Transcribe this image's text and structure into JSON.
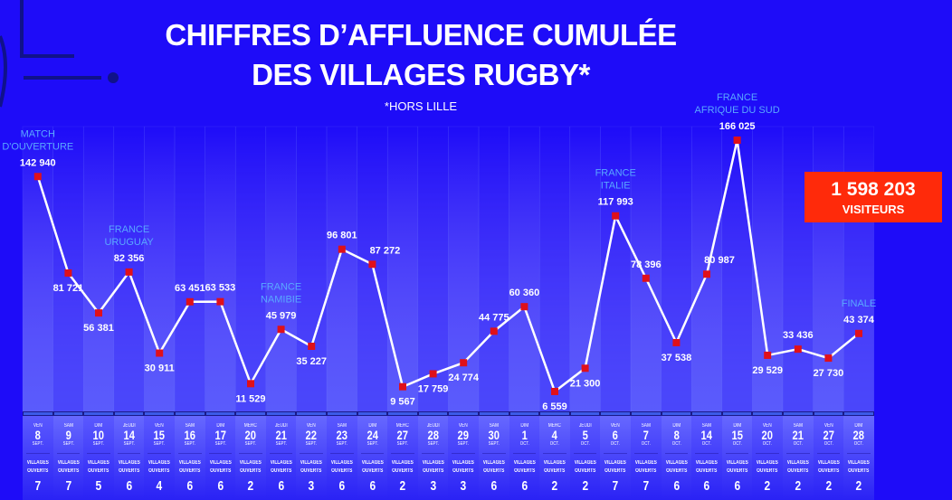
{
  "title_line1": "CHIFFRES D’AFFLUENCE CUMULÉE",
  "title_line2": "DES VILLAGES RUGBY*",
  "subtitle": "*HORS LILLE",
  "total": {
    "value": "1 598 203",
    "label": "VISITEURS"
  },
  "colors": {
    "background": "#1e0cf8",
    "line": "#ffffff",
    "marker": "#e0101a",
    "annotation": "#5aa8ff",
    "total_box": "#ff2a0a"
  },
  "village_label_1": "VILLAGES",
  "village_label_2": "OUVERTS",
  "chart_data": {
    "type": "line",
    "title": "CHIFFRES D’AFFLUENCE CUMULÉE DES VILLAGES RUGBY*",
    "ylim": [
      0,
      170000
    ],
    "points": [
      {
        "day": "VEN",
        "date": "8",
        "month": "SEPT.",
        "value": 142940,
        "label": "142 940",
        "villages": "7",
        "note": "MATCH D'OUVERTURE"
      },
      {
        "day": "SAM",
        "date": "9",
        "month": "SEPT.",
        "value": 81721,
        "label": "81 721",
        "villages": "7"
      },
      {
        "day": "DIM",
        "date": "10",
        "month": "SEPT.",
        "value": 56381,
        "label": "56 381",
        "villages": "5"
      },
      {
        "day": "JEUDI",
        "date": "14",
        "month": "SEPT.",
        "value": 82356,
        "label": "82 356",
        "villages": "6",
        "note": "FRANCE URUGUAY"
      },
      {
        "day": "VEN",
        "date": "15",
        "month": "SEPT.",
        "value": 30911,
        "label": "30 911",
        "villages": "4"
      },
      {
        "day": "SAM",
        "date": "16",
        "month": "SEPT.",
        "value": 63451,
        "label": "63 451",
        "villages": "6"
      },
      {
        "day": "DIM",
        "date": "17",
        "month": "SEPT.",
        "value": 63533,
        "label": "63 533",
        "villages": "6"
      },
      {
        "day": "MERC",
        "date": "20",
        "month": "SEPT.",
        "value": 11529,
        "label": "11 529",
        "villages": "2"
      },
      {
        "day": "JEUDI",
        "date": "21",
        "month": "SEPT.",
        "value": 45979,
        "label": "45 979",
        "villages": "6",
        "note": "FRANCE NAMIBIE"
      },
      {
        "day": "VEN",
        "date": "22",
        "month": "SEPT.",
        "value": 35227,
        "label": "35 227",
        "villages": "3"
      },
      {
        "day": "SAM",
        "date": "23",
        "month": "SEPT.",
        "value": 96801,
        "label": "96 801",
        "villages": "6"
      },
      {
        "day": "DIM",
        "date": "24",
        "month": "SEPT.",
        "value": 87272,
        "label": "87 272",
        "villages": "6"
      },
      {
        "day": "MERC",
        "date": "27",
        "month": "SEPT.",
        "value": 9567,
        "label": "9 567",
        "villages": "2"
      },
      {
        "day": "JEUDI",
        "date": "28",
        "month": "SEPT.",
        "value": 17759,
        "label": "17 759",
        "villages": "3"
      },
      {
        "day": "VEN",
        "date": "29",
        "month": "SEPT.",
        "value": 24774,
        "label": "24 774",
        "villages": "3"
      },
      {
        "day": "SAM",
        "date": "30",
        "month": "SEPT.",
        "value": 44775,
        "label": "44 775",
        "villages": "6"
      },
      {
        "day": "DIM",
        "date": "1",
        "month": "OCT.",
        "value": 60360,
        "label": "60 360",
        "villages": "6"
      },
      {
        "day": "MERC",
        "date": "4",
        "month": "OCT.",
        "value": 6559,
        "label": "6 559",
        "villages": "2"
      },
      {
        "day": "JEUDI",
        "date": "5",
        "month": "OCT.",
        "value": 21300,
        "label": "21 300",
        "villages": "2"
      },
      {
        "day": "VEN",
        "date": "6",
        "month": "OCT.",
        "value": 117993,
        "label": "117 993",
        "villages": "7",
        "note": "FRANCE ITALIE"
      },
      {
        "day": "SAM",
        "date": "7",
        "month": "OCT.",
        "value": 78396,
        "label": "78 396",
        "villages": "7"
      },
      {
        "day": "DIM",
        "date": "8",
        "month": "OCT.",
        "value": 37538,
        "label": "37 538",
        "villages": "6"
      },
      {
        "day": "SAM",
        "date": "14",
        "month": "OCT.",
        "value": 80987,
        "label": "80 987",
        "villages": "6"
      },
      {
        "day": "DIM",
        "date": "15",
        "month": "OCT.",
        "value": 166025,
        "label": "166 025",
        "villages": "6",
        "note": "FRANCE AFRIQUE DU SUD"
      },
      {
        "day": "VEN",
        "date": "20",
        "month": "OCT.",
        "value": 29529,
        "label": "29 529",
        "villages": "2"
      },
      {
        "day": "SAM",
        "date": "21",
        "month": "OCT.",
        "value": 33436,
        "label": "33 436",
        "villages": "2"
      },
      {
        "day": "VEN",
        "date": "27",
        "month": "OCT.",
        "value": 27730,
        "label": "27 730",
        "villages": "2"
      },
      {
        "day": "DIM",
        "date": "28",
        "month": "OCT.",
        "value": 43374,
        "label": "43 374",
        "villages": "2",
        "note": "FINALE"
      }
    ]
  }
}
